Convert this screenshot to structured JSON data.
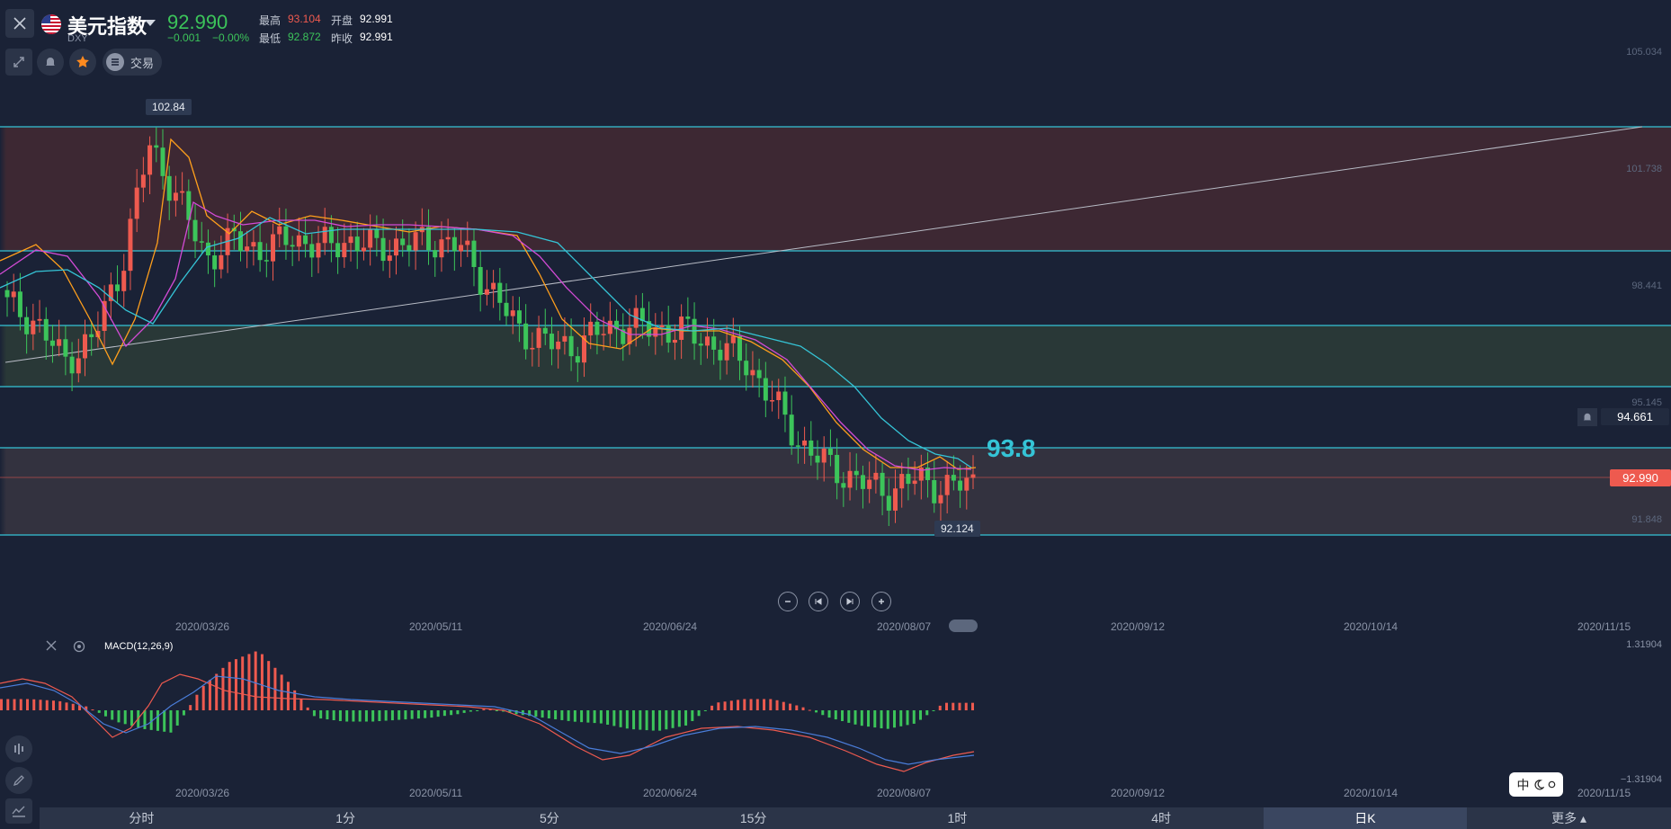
{
  "header": {
    "title": "美元指数",
    "symbol": "DXY",
    "price": "92.990",
    "change": "−0.001",
    "change_pct": "−0.00%",
    "high_label": "最高",
    "high": "93.104",
    "open_label": "开盘",
    "open": "92.991",
    "low_label": "最低",
    "low": "92.872",
    "prev_close_label": "昨收",
    "prev_close": "92.991",
    "trade_label": "交易"
  },
  "price_axis": [
    "105.034",
    "101.738",
    "98.441",
    "95.145",
    "91.848"
  ],
  "markers": {
    "peak": "102.84",
    "trough": "92.124",
    "annotation": "93.8",
    "alert_price": "94.661",
    "last_price": "92.990"
  },
  "dates": [
    "2020/03/26",
    "2020/05/11",
    "2020/06/24",
    "2020/08/07",
    "2020/09/12",
    "2020/10/14",
    "2020/11/15"
  ],
  "macd": {
    "label": "MACD(12,26,9)",
    "axis_top": "1.31904",
    "axis_bottom": "−1.31904"
  },
  "timeframes": [
    "分时",
    "1分",
    "5分",
    "15分",
    "1时",
    "4时",
    "日K",
    "更多"
  ],
  "active_timeframe": "日K",
  "lang_toggle": "中",
  "colors": {
    "up": "#3cc45a",
    "down": "#ee5a4f",
    "teal": "#35c4d6",
    "bg": "#1a2236"
  },
  "chart_data": [
    {
      "type": "candlestick",
      "title": "",
      "x_axis": [
        "2020/03/26",
        "2020/05/11",
        "2020/06/24",
        "2020/08/07",
        "2020/09/12",
        "2020/10/14",
        "2020/11/15"
      ],
      "y_ticks": [
        105.034,
        101.738,
        98.441,
        95.145,
        91.848
      ],
      "close_trend": [
        98.0,
        97.5,
        96.4,
        97.0,
        99.0,
        102.5,
        101.0,
        99.3,
        99.8,
        99.5,
        99.9,
        99.6,
        99.8,
        99.6,
        99.7,
        99.8,
        99.6,
        98.4,
        97.3,
        96.9,
        96.8,
        97.3,
        97.4,
        97.3,
        97.2,
        96.8,
        96.4,
        95.2,
        94.0,
        93.4,
        93.0,
        92.7,
        93.1,
        92.8,
        92.99
      ],
      "high": 102.84,
      "low": 92.124,
      "last": 92.99,
      "horizontal_levels": [
        102.84,
        99.8,
        98.0,
        96.3,
        94.5,
        91.8
      ],
      "moving_average_colors": [
        "#ff9f1c",
        "#d34bd6",
        "#35c4d6"
      ]
    },
    {
      "type": "bar",
      "title": "MACD(12,26,9)",
      "y_range": [
        -1.31904,
        1.31904
      ],
      "histogram": [
        0.3,
        0.3,
        0.25,
        0.1,
        -0.3,
        -0.5,
        -0.6,
        0.6,
        1.3,
        1.6,
        0.8,
        -0.2,
        -0.3,
        -0.3,
        -0.25,
        -0.2,
        -0.1,
        0.05,
        -0.1,
        -0.2,
        -0.3,
        -0.35,
        -0.5,
        -0.55,
        -0.4,
        0.2,
        0.3,
        0.3,
        0.1,
        -0.2,
        -0.4,
        -0.5,
        -0.35,
        0.2,
        0.2
      ]
    }
  ]
}
